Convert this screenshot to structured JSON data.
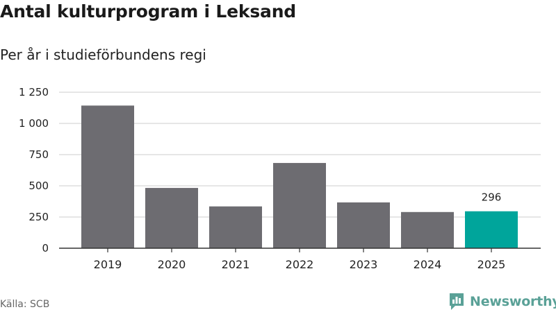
{
  "title": "Antal kulturprogram i Leksand",
  "subtitle": "Per år i studieförbundens regi",
  "source": "Källa: SCB",
  "brand": "Newsworthy",
  "colors": {
    "bar": "#6d6c71",
    "highlight": "#00a59b",
    "grid": "#dddddd",
    "axis": "#333333"
  },
  "chart_data": {
    "type": "bar",
    "title": "Antal kulturprogram i Leksand",
    "subtitle": "Per år i studieförbundens regi",
    "xlabel": "",
    "ylabel": "",
    "categories": [
      "2019",
      "2020",
      "2021",
      "2022",
      "2023",
      "2024",
      "2025"
    ],
    "values": [
      1143,
      483,
      335,
      683,
      367,
      290,
      296
    ],
    "highlight_index": 6,
    "data_labels": [
      {
        "index": 6,
        "text": "296"
      }
    ],
    "ylim": [
      0,
      1250
    ],
    "yticks": [
      0,
      250,
      500,
      750,
      1000,
      1250
    ],
    "ytick_labels": [
      "0",
      "250",
      "500",
      "750",
      "1 000",
      "1 250"
    ],
    "grid": true
  }
}
